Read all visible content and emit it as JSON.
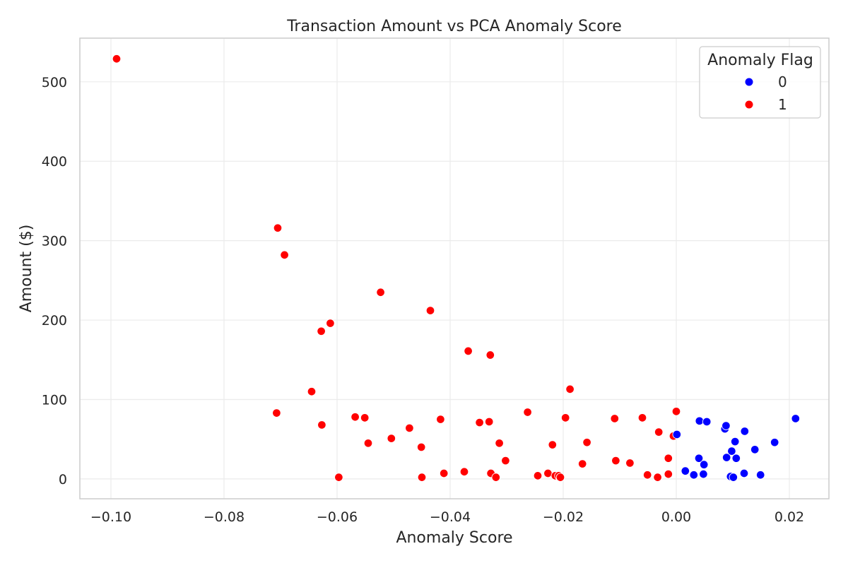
{
  "chart_data": {
    "type": "scatter",
    "title": "Transaction Amount vs PCA Anomaly Score",
    "xlabel": "Anomaly Score",
    "ylabel": "Amount ($)",
    "xlim": [
      -0.1055,
      0.027
    ],
    "ylim": [
      -25,
      555
    ],
    "xticks": [
      -0.1,
      -0.08,
      -0.06,
      -0.04,
      -0.02,
      0.0,
      0.02
    ],
    "xtick_labels": [
      "−0.10",
      "−0.08",
      "−0.06",
      "−0.04",
      "−0.02",
      "0.00",
      "0.02"
    ],
    "yticks": [
      0,
      100,
      200,
      300,
      400,
      500
    ],
    "ytick_labels": [
      "0",
      "100",
      "200",
      "300",
      "400",
      "500"
    ],
    "grid": true,
    "legend": {
      "title": "Anomaly Flag",
      "placement": "top-right",
      "entries": [
        {
          "label": "0",
          "color": "#0000ff"
        },
        {
          "label": "1",
          "color": "#ff0000"
        }
      ]
    },
    "series": [
      {
        "name": "1",
        "color": "#ff0000",
        "points": [
          [
            -0.099,
            529
          ],
          [
            -0.0705,
            316
          ],
          [
            -0.0693,
            282
          ],
          [
            -0.0707,
            83
          ],
          [
            -0.0645,
            110
          ],
          [
            -0.0628,
            186
          ],
          [
            -0.0612,
            196
          ],
          [
            -0.0627,
            68
          ],
          [
            -0.0597,
            2
          ],
          [
            -0.0568,
            78
          ],
          [
            -0.0551,
            77
          ],
          [
            -0.0545,
            45
          ],
          [
            -0.0523,
            235
          ],
          [
            -0.0504,
            51
          ],
          [
            -0.0472,
            64
          ],
          [
            -0.0451,
            40
          ],
          [
            -0.045,
            2
          ],
          [
            -0.0435,
            212
          ],
          [
            -0.0417,
            75
          ],
          [
            -0.0411,
            7
          ],
          [
            -0.0375,
            9
          ],
          [
            -0.0368,
            161
          ],
          [
            -0.0348,
            71
          ],
          [
            -0.0331,
            72
          ],
          [
            -0.0329,
            156
          ],
          [
            -0.0328,
            7
          ],
          [
            -0.0319,
            2
          ],
          [
            -0.0313,
            45
          ],
          [
            -0.0302,
            23
          ],
          [
            -0.0263,
            84
          ],
          [
            -0.0245,
            4
          ],
          [
            -0.0227,
            7
          ],
          [
            -0.0219,
            43
          ],
          [
            -0.0214,
            4
          ],
          [
            -0.0208,
            4
          ],
          [
            -0.0205,
            2
          ],
          [
            -0.0196,
            77
          ],
          [
            -0.0188,
            113
          ],
          [
            -0.0166,
            19
          ],
          [
            -0.0158,
            46
          ],
          [
            -0.0109,
            76
          ],
          [
            -0.0107,
            23
          ],
          [
            -0.0082,
            20
          ],
          [
            -0.006,
            77
          ],
          [
            -0.0051,
            5
          ],
          [
            -0.0033,
            2
          ],
          [
            -0.0031,
            59
          ],
          [
            -0.0014,
            6
          ],
          [
            -0.0014,
            26
          ],
          [
            -0.0005,
            54
          ],
          [
            0.0,
            85
          ]
        ]
      },
      {
        "name": "0",
        "color": "#0000ff",
        "points": [
          [
            0.0001,
            56
          ],
          [
            0.0016,
            10
          ],
          [
            0.0031,
            5
          ],
          [
            0.004,
            26
          ],
          [
            0.0041,
            73
          ],
          [
            0.0048,
            6
          ],
          [
            0.0049,
            18
          ],
          [
            0.0054,
            72
          ],
          [
            0.0086,
            63
          ],
          [
            0.0088,
            67
          ],
          [
            0.0089,
            27
          ],
          [
            0.0096,
            3
          ],
          [
            0.0098,
            35
          ],
          [
            0.0101,
            2
          ],
          [
            0.0104,
            47
          ],
          [
            0.0106,
            26
          ],
          [
            0.012,
            7
          ],
          [
            0.0121,
            60
          ],
          [
            0.0139,
            37
          ],
          [
            0.0149,
            5
          ],
          [
            0.0174,
            46
          ],
          [
            0.0211,
            76
          ]
        ]
      }
    ]
  }
}
